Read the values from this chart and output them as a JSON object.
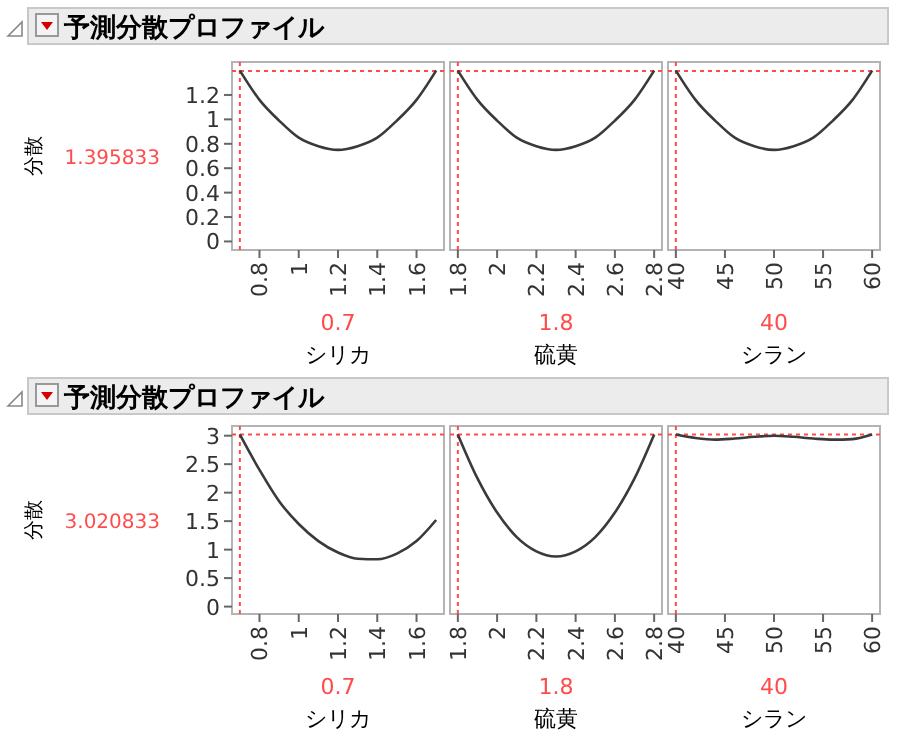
{
  "chart_data": [
    {
      "type": "line",
      "title": "予測分散プロファイル",
      "ylabel": "分散",
      "xlabel": "シリカ",
      "x": [
        0.7,
        0.8,
        0.9,
        1.0,
        1.1,
        1.2,
        1.3,
        1.4,
        1.5,
        1.6,
        1.7
      ],
      "values": [
        1.4,
        1.16,
        0.99,
        0.85,
        0.78,
        0.75,
        0.78,
        0.85,
        0.99,
        1.16,
        1.4
      ],
      "color": "#3a3a3a",
      "xlim": [
        0.66,
        1.74
      ],
      "ylim": [
        -0.07,
        1.47
      ],
      "xticks": [
        0.8,
        1,
        1.2,
        1.4,
        1.6
      ],
      "yticks": [
        0,
        0.2,
        0.4,
        0.6,
        0.8,
        1,
        1.2
      ],
      "ref_lines": [
        {
          "axis": "x",
          "value": 0.7,
          "label": "0.7",
          "color": "#ff4b4b",
          "line_style": "dotted"
        },
        {
          "axis": "y",
          "value": 1.395833,
          "label": "1.395833",
          "color": "#ff4b4b",
          "line_style": "dotted"
        }
      ]
    },
    {
      "type": "line",
      "xlabel": "硫黄",
      "x": [
        1.8,
        1.9,
        2.0,
        2.1,
        2.2,
        2.3,
        2.4,
        2.5,
        2.6,
        2.7,
        2.8
      ],
      "values": [
        1.4,
        1.16,
        0.99,
        0.85,
        0.78,
        0.75,
        0.78,
        0.85,
        0.99,
        1.16,
        1.4
      ],
      "color": "#3a3a3a",
      "xlim": [
        1.76,
        2.84
      ],
      "ylim": [
        -0.07,
        1.47
      ],
      "xticks": [
        1.8,
        2,
        2.2,
        2.4,
        2.6,
        2.8
      ],
      "yticks": [
        0,
        0.2,
        0.4,
        0.6,
        0.8,
        1,
        1.2
      ],
      "tick_labels": "x",
      "ref_lines": [
        {
          "axis": "x",
          "value": 1.8,
          "label": "1.8",
          "color": "#ff4b4b",
          "line_style": "dotted"
        },
        {
          "axis": "y",
          "value": 1.395833,
          "color": "#ff4b4b",
          "line_style": "dotted"
        }
      ]
    },
    {
      "type": "line",
      "xlabel": "シラン",
      "x": [
        40,
        42,
        44,
        46,
        48,
        50,
        52,
        54,
        56,
        58,
        60
      ],
      "values": [
        1.4,
        1.16,
        0.99,
        0.85,
        0.78,
        0.75,
        0.78,
        0.85,
        0.99,
        1.16,
        1.4
      ],
      "color": "#3a3a3a",
      "xlim": [
        39.2,
        60.8
      ],
      "ylim": [
        -0.07,
        1.47
      ],
      "xticks": [
        40,
        45,
        50,
        55,
        60
      ],
      "yticks": [
        0,
        0.2,
        0.4,
        0.6,
        0.8,
        1,
        1.2
      ],
      "tick_labels": "x",
      "ref_lines": [
        {
          "axis": "x",
          "value": 40,
          "label": "40",
          "color": "#ff4b4b",
          "line_style": "dotted"
        },
        {
          "axis": "y",
          "value": 1.395833,
          "color": "#ff4b4b",
          "line_style": "dotted"
        }
      ]
    },
    {
      "type": "line",
      "title": "予測分散プロファイル",
      "ylabel": "分散",
      "xlabel": "シリカ",
      "x": [
        0.7,
        0.8,
        0.9,
        1.0,
        1.1,
        1.2,
        1.3,
        1.4,
        1.5,
        1.6,
        1.7
      ],
      "values": [
        3.02,
        2.4,
        1.85,
        1.45,
        1.15,
        0.95,
        0.84,
        0.83,
        0.93,
        1.15,
        1.52
      ],
      "color": "#3a3a3a",
      "xlim": [
        0.66,
        1.74
      ],
      "ylim": [
        -0.13,
        3.17
      ],
      "xticks": [
        0.8,
        1,
        1.2,
        1.4,
        1.6
      ],
      "yticks": [
        0,
        0.5,
        1,
        1.5,
        2,
        2.5,
        3
      ],
      "ref_lines": [
        {
          "axis": "x",
          "value": 0.7,
          "label": "0.7",
          "color": "#ff4b4b",
          "line_style": "dotted"
        },
        {
          "axis": "y",
          "value": 3.020833,
          "label": "3.020833",
          "color": "#ff4b4b",
          "line_style": "dotted"
        }
      ]
    },
    {
      "type": "line",
      "xlabel": "硫黄",
      "x": [
        1.8,
        1.9,
        2.0,
        2.1,
        2.2,
        2.3,
        2.4,
        2.5,
        2.6,
        2.7,
        2.8
      ],
      "values": [
        3.02,
        2.25,
        1.65,
        1.22,
        0.97,
        0.88,
        0.97,
        1.22,
        1.65,
        2.25,
        3.02
      ],
      "color": "#3a3a3a",
      "xlim": [
        1.76,
        2.84
      ],
      "ylim": [
        -0.13,
        3.17
      ],
      "xticks": [
        1.8,
        2,
        2.2,
        2.4,
        2.6,
        2.8
      ],
      "yticks": [
        0,
        0.5,
        1,
        1.5,
        2,
        2.5,
        3
      ],
      "tick_labels": "x",
      "ref_lines": [
        {
          "axis": "x",
          "value": 1.8,
          "label": "1.8",
          "color": "#ff4b4b",
          "line_style": "dotted"
        },
        {
          "axis": "y",
          "value": 3.020833,
          "color": "#ff4b4b",
          "line_style": "dotted"
        }
      ]
    },
    {
      "type": "line",
      "xlabel": "シラン",
      "x": [
        40,
        42,
        44,
        46,
        48,
        50,
        52,
        54,
        56,
        58,
        60
      ],
      "values": [
        3.02,
        2.96,
        2.93,
        2.95,
        2.98,
        3.0,
        2.98,
        2.95,
        2.93,
        2.94,
        3.02
      ],
      "color": "#3a3a3a",
      "xlim": [
        39.2,
        60.8
      ],
      "ylim": [
        -0.13,
        3.17
      ],
      "xticks": [
        40,
        45,
        50,
        55,
        60
      ],
      "yticks": [
        0,
        0.5,
        1,
        1.5,
        2,
        2.5,
        3
      ],
      "tick_labels": "x",
      "ref_lines": [
        {
          "axis": "x",
          "value": 40,
          "label": "40",
          "color": "#ff4b4b",
          "line_style": "dotted"
        },
        {
          "axis": "y",
          "value": 3.020833,
          "color": "#ff4b4b",
          "line_style": "dotted"
        }
      ]
    }
  ]
}
